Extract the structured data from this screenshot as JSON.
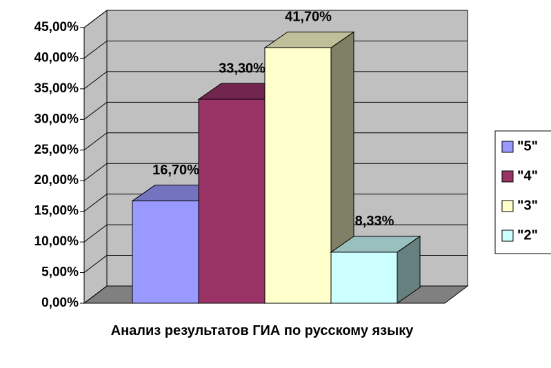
{
  "chart_data": {
    "type": "bar3d",
    "xlabel": "Анализ результатов ГИА по русскому языку",
    "series": [
      {
        "name": "\"5\"",
        "color": "#9999ff",
        "values": [
          16.7
        ],
        "value_labels": [
          "16,70%"
        ]
      },
      {
        "name": "\"4\"",
        "color": "#993366",
        "values": [
          33.3
        ],
        "value_labels": [
          "33,30%"
        ]
      },
      {
        "name": "\"3\"",
        "color": "#ffffcc",
        "values": [
          41.7
        ],
        "value_labels": [
          "41,70%"
        ]
      },
      {
        "name": "\"2\"",
        "color": "#ccffff",
        "values": [
          8.33
        ],
        "value_labels": [
          "8,33%"
        ]
      }
    ],
    "ylim": [
      0,
      45
    ],
    "yticks": [
      {
        "value": 0,
        "label": "0,00%"
      },
      {
        "value": 5,
        "label": "5,00%"
      },
      {
        "value": 10,
        "label": "10,00%"
      },
      {
        "value": 15,
        "label": "15,00%"
      },
      {
        "value": 20,
        "label": "20,00%"
      },
      {
        "value": 25,
        "label": "25,00%"
      },
      {
        "value": 30,
        "label": "30,00%"
      },
      {
        "value": 35,
        "label": "35,00%"
      },
      {
        "value": 40,
        "label": "40,00%"
      },
      {
        "value": 45,
        "label": "45,00%"
      }
    ],
    "grid": true,
    "legend": "right"
  }
}
